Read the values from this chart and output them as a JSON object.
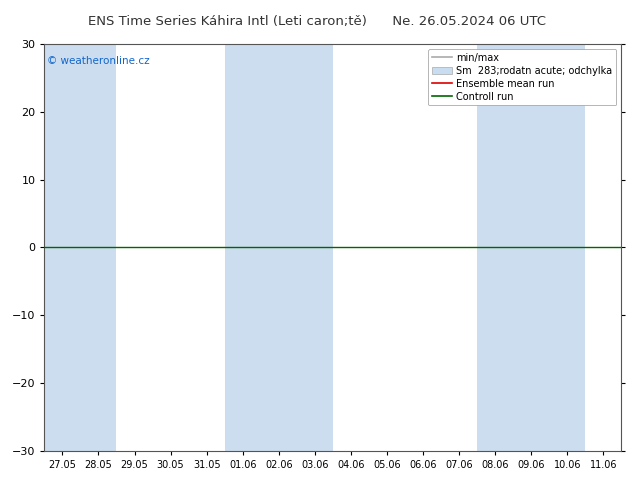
{
  "title_left": "ENS Time Series Káhira Intl (Leti caron;tě)",
  "title_right": "Ne. 26.05.2024 06 UTC",
  "xlabel_ticks": [
    "27.05",
    "28.05",
    "29.05",
    "30.05",
    "31.05",
    "01.06",
    "02.06",
    "03.06",
    "04.06",
    "05.06",
    "06.06",
    "07.06",
    "08.06",
    "09.06",
    "10.06",
    "11.06"
  ],
  "ylim": [
    -30,
    30
  ],
  "yticks": [
    -30,
    -20,
    -10,
    0,
    10,
    20,
    30
  ],
  "bg_color": "#ffffff",
  "plot_bg_color": "#ffffff",
  "stripe_color": "#ccddef",
  "watermark": "© weatheronline.cz",
  "watermark_color": "#1166cc",
  "zero_line_color": "#006600",
  "legend_items": [
    {
      "label": "min/max",
      "color": "#aaaaaa",
      "lw": 1.2,
      "type": "line"
    },
    {
      "label": "Sm  283;rodatn acute; odchylka",
      "color": "#c8ddf0",
      "edgecolor": "#aaaaaa",
      "type": "fill"
    },
    {
      "label": "Ensemble mean run",
      "color": "#dd0000",
      "lw": 1.2,
      "type": "line"
    },
    {
      "label": "Controll run",
      "color": "#006600",
      "lw": 1.2,
      "type": "line"
    }
  ],
  "stripe_cols": [
    0,
    1,
    5,
    6,
    7,
    12,
    13,
    14
  ],
  "n_ticks": 16
}
